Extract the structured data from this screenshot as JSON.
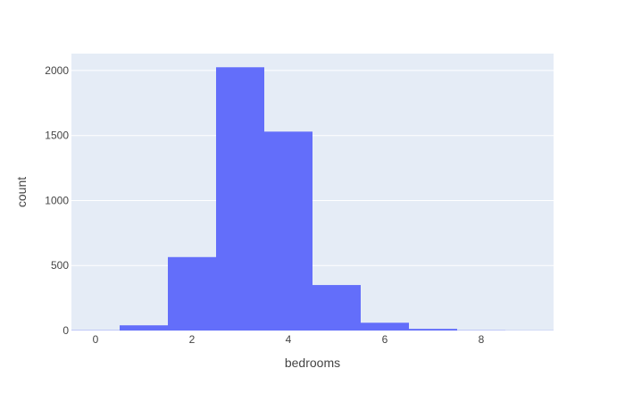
{
  "chart_data": {
    "type": "bar",
    "xlabel": "bedrooms",
    "ylabel": "count",
    "categories": [
      "0",
      "1",
      "2",
      "3",
      "4",
      "5",
      "6",
      "7",
      "8",
      "9"
    ],
    "values": [
      2,
      40,
      565,
      2025,
      1530,
      350,
      60,
      13,
      2,
      1
    ],
    "xlim": [
      -0.5,
      9.5
    ],
    "ylim": [
      0,
      2130
    ],
    "xticks": [
      0,
      2,
      4,
      6,
      8
    ],
    "yticks": [
      0,
      500,
      1000,
      1500,
      2000
    ],
    "grid": true,
    "colors": {
      "bar": "#636efa",
      "plot_background": "#e5ecf6",
      "gridline": "#ffffff",
      "text": "#444444"
    }
  }
}
